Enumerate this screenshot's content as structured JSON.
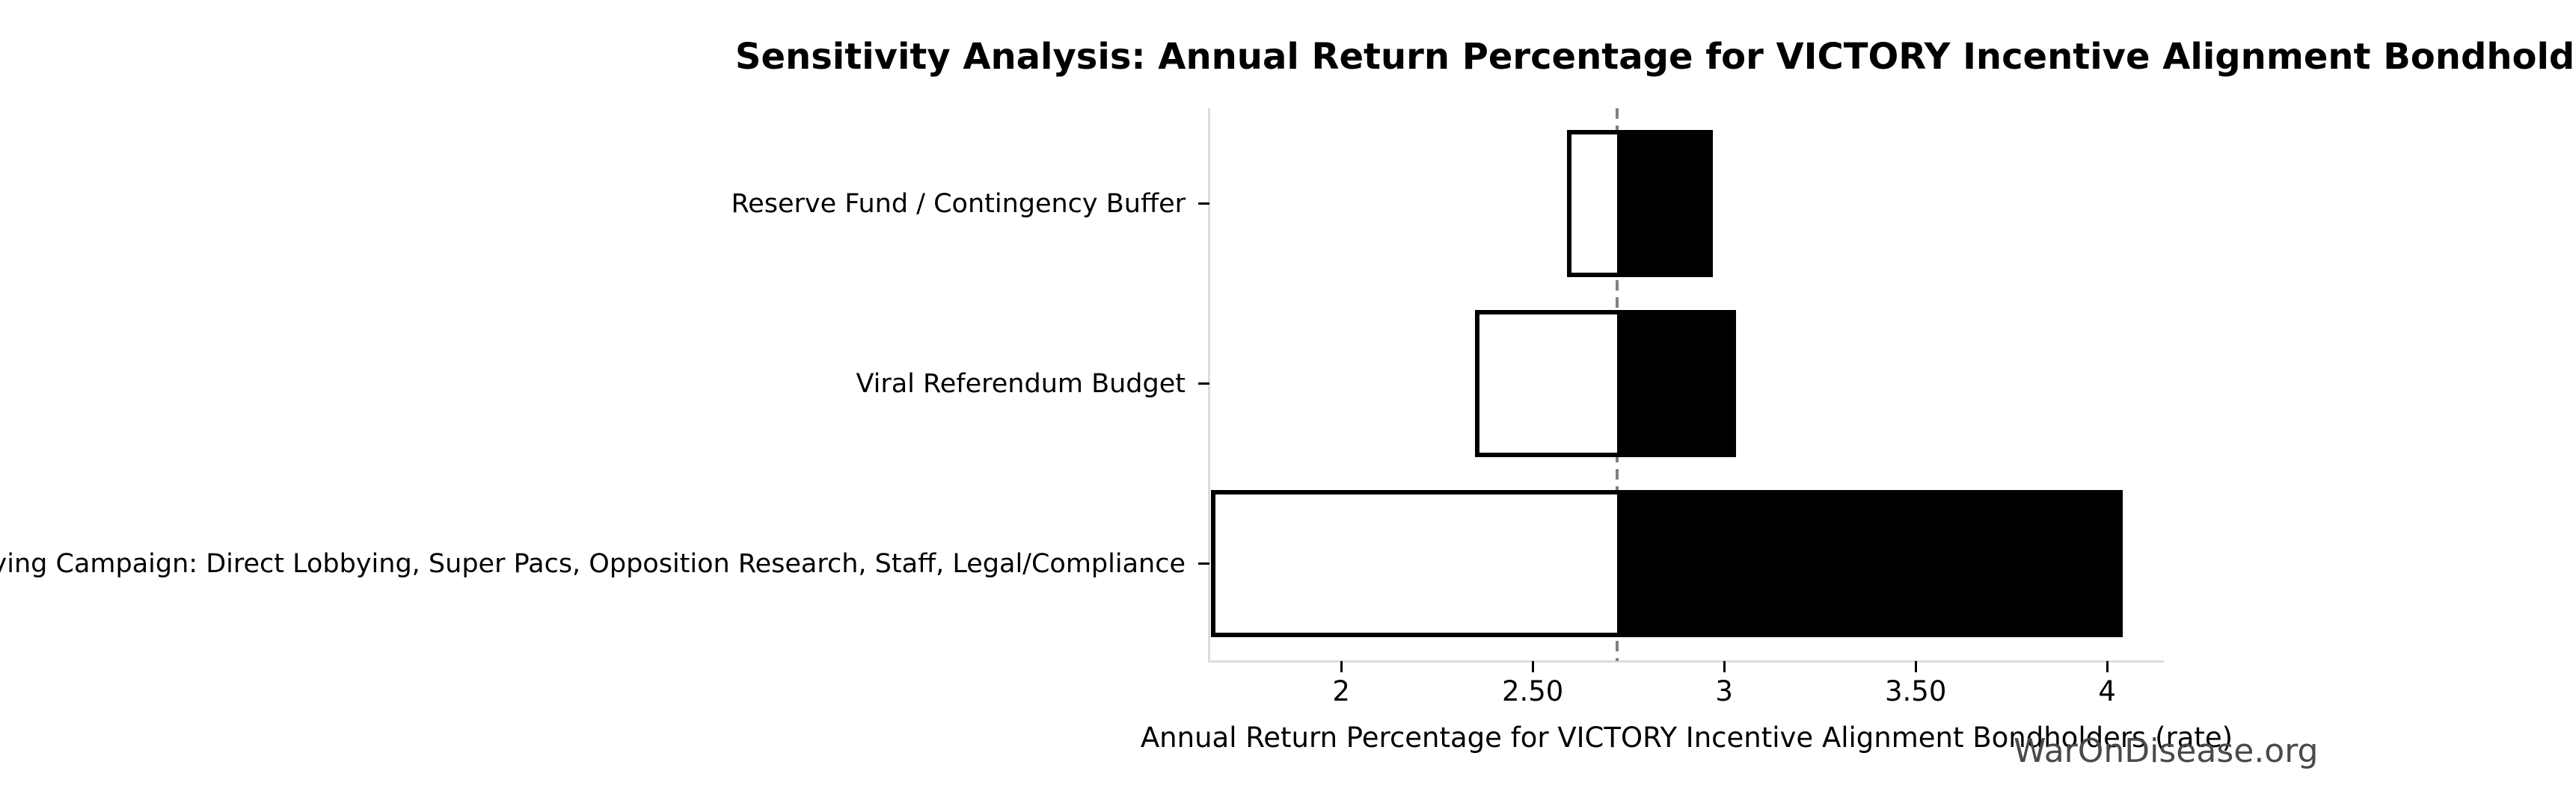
{
  "watermark": "WarOnDisease.org",
  "chart_data": {
    "type": "bar",
    "subtype": "tornado-sensitivity",
    "orientation": "horizontal",
    "title": "Sensitivity Analysis: Annual Return Percentage for VICTORY Incentive Alignment Bondholders",
    "xlabel": "Annual Return Percentage for VICTORY Incentive Alignment Bondholders (rate)",
    "ylabel": "",
    "categories": [
      "Reserve Fund / Contingency Buffer",
      "Viral Referendum Budget",
      "Political Lobbying Campaign: Direct Lobbying, Super Pacs, Opposition Research, Staff, Legal/Compliance"
    ],
    "series": [
      {
        "name": "low-end value (white segment)",
        "fill": "#ffffff",
        "values": [
          2.59,
          2.35,
          1.66
        ]
      },
      {
        "name": "high-end value (black segment)",
        "fill": "#000000",
        "values": [
          2.97,
          3.03,
          4.04
        ]
      }
    ],
    "baseline": 2.72,
    "xlim": [
      1.656,
      4.148
    ],
    "xticks": [
      {
        "value": 2,
        "label": "2"
      },
      {
        "value": 2.5,
        "label": "2.50"
      },
      {
        "value": 3,
        "label": "3"
      },
      {
        "value": 3.5,
        "label": "3.50"
      },
      {
        "value": 4,
        "label": "4"
      }
    ],
    "grid": false,
    "legend": false,
    "colors": {
      "bar_edge": "#000000",
      "baseline_line": "#808080",
      "spine": "#dcdcdc",
      "tick_mark": "#000000",
      "text": "#000000",
      "watermark": "#4a4a4a"
    }
  }
}
